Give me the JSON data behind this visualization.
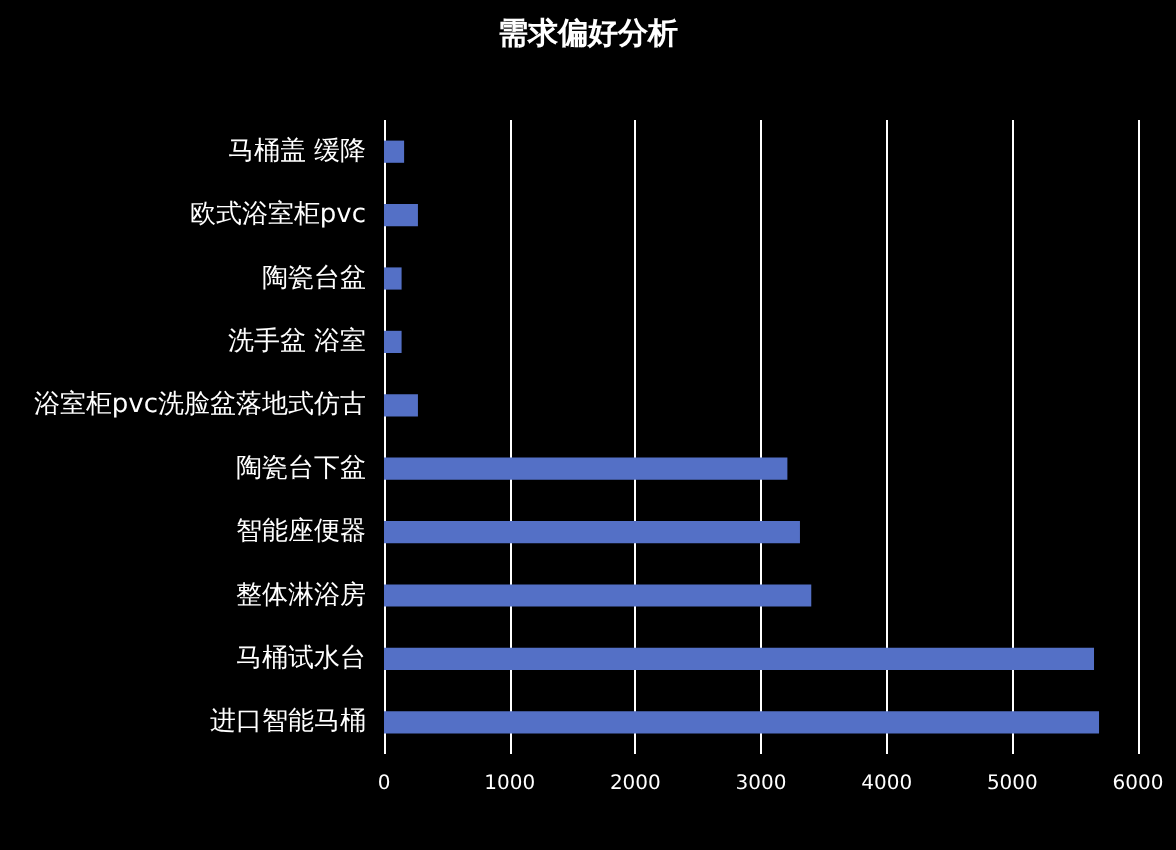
{
  "chart_data": {
    "type": "bar",
    "orientation": "horizontal",
    "title": "需求偏好分析",
    "categories": [
      "马桶盖 缓降",
      "欧式浴室柜pvc",
      "陶瓷台盆",
      "洗手盆 浴室",
      "浴室柜pvc洗脸盆落地式仿古",
      "陶瓷台下盆",
      "智能座便器",
      "整体淋浴房",
      "马桶试水台",
      "进口智能马桶"
    ],
    "values": [
      160,
      270,
      140,
      140,
      270,
      3210,
      3310,
      3400,
      5650,
      5690
    ],
    "color": "#5470c6",
    "xlim": [
      0,
      6000
    ],
    "xticks": [
      0,
      1000,
      2000,
      3000,
      4000,
      5000,
      6000
    ],
    "grid": "x"
  }
}
